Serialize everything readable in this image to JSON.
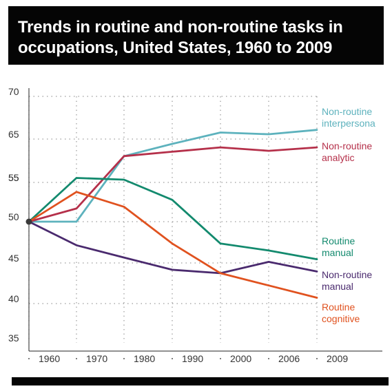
{
  "title": "Trends in routine and non-routine tasks in occupations, United States, 1960 to 2009",
  "chart_data": {
    "type": "line",
    "title": "Trends in routine and non-routine tasks in occupations, United States, 1960 to 2009",
    "xlabel": "",
    "ylabel": "",
    "categories": [
      "1960",
      "1970",
      "1980",
      "1990",
      "2000",
      "2006",
      "2009"
    ],
    "x_tick_labels": [
      "1960",
      "1970",
      "1980",
      "1990",
      "2000",
      "2006",
      "2009"
    ],
    "y_tick_labels": [
      "70",
      "65",
      "55",
      "55",
      "50",
      "45",
      "40",
      "35"
    ],
    "ylim": [
      35,
      70
    ],
    "grid": true,
    "legend": "inline-right",
    "series": [
      {
        "name": "Non-routine interpersonal",
        "label_lines": [
          "Non-routine",
          "interpersona"
        ],
        "color": "#5db2bd",
        "values": [
          50.0,
          50.0,
          57.5,
          58.9,
          60.2,
          60.0,
          60.5
        ]
      },
      {
        "name": "Non-routine analytic",
        "label_lines": [
          "Non-routine",
          "analytic"
        ],
        "color": "#b5304a",
        "values": [
          50.0,
          51.5,
          57.5,
          58.0,
          58.5,
          58.1,
          58.5
        ]
      },
      {
        "name": "Routine manual",
        "label_lines": [
          "Routine",
          "manual"
        ],
        "color": "#138a6e",
        "values": [
          50.0,
          55.0,
          54.8,
          52.5,
          47.5,
          46.7,
          45.7
        ]
      },
      {
        "name": "Non-routine manual",
        "label_lines": [
          "Non-routine",
          "manual"
        ],
        "color": "#4a2a6e",
        "values": [
          50.0,
          47.3,
          45.9,
          44.5,
          44.1,
          45.4,
          44.3
        ]
      },
      {
        "name": "Routine cognitive",
        "label_lines": [
          "Routine",
          "cognitive"
        ],
        "color": "#e0521f",
        "values": [
          50.0,
          53.4,
          51.7,
          47.5,
          44.1,
          42.7,
          41.3
        ]
      }
    ]
  }
}
